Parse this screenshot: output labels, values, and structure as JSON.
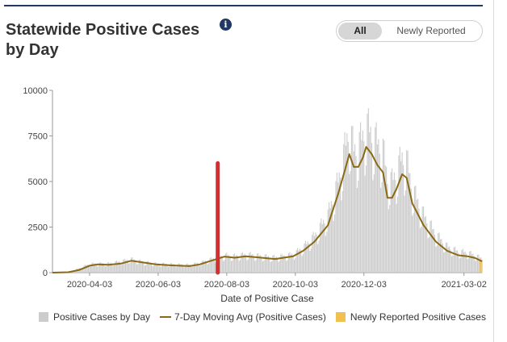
{
  "header": {
    "title": "Statewide Positive Cases by Day",
    "info_icon": "info-icon"
  },
  "toggle": {
    "options": [
      "All",
      "Newly Reported"
    ],
    "selected": "All"
  },
  "colors": {
    "header_rule": "#1f3864",
    "bars": "#cccccc",
    "moving_avg": "#8b6914",
    "newly_reported": "#f0c050",
    "marker": "#d32f2f"
  },
  "chart_data": {
    "type": "bar",
    "xlabel": "Date of Positive Case",
    "ylabel": "",
    "ylim": [
      0,
      10000
    ],
    "x_start": "2020-03-01",
    "x_end": "2021-03-18",
    "y_ticks": [
      0,
      2500,
      5000,
      7500,
      10000
    ],
    "x_ticks": [
      "2020-04-03",
      "2020-06-03",
      "2020-08-03",
      "2020-10-03",
      "2020-12-03",
      "2021-03-02"
    ],
    "marker_date": "2020-07-26",
    "legend": [
      "Positive Cases by Day",
      "7-Day Moving Avg (Positive Cases)",
      "Newly Reported Positive Cases"
    ],
    "moving_avg_points": [
      [
        "2020-03-01",
        0
      ],
      [
        "2020-03-15",
        20
      ],
      [
        "2020-03-25",
        150
      ],
      [
        "2020-04-03",
        380
      ],
      [
        "2020-04-10",
        450
      ],
      [
        "2020-04-20",
        430
      ],
      [
        "2020-05-01",
        500
      ],
      [
        "2020-05-10",
        650
      ],
      [
        "2020-05-20",
        560
      ],
      [
        "2020-06-01",
        450
      ],
      [
        "2020-06-15",
        400
      ],
      [
        "2020-07-01",
        360
      ],
      [
        "2020-07-10",
        450
      ],
      [
        "2020-07-20",
        650
      ],
      [
        "2020-08-01",
        880
      ],
      [
        "2020-08-10",
        820
      ],
      [
        "2020-08-20",
        900
      ],
      [
        "2020-09-01",
        830
      ],
      [
        "2020-09-15",
        750
      ],
      [
        "2020-10-01",
        900
      ],
      [
        "2020-10-10",
        1200
      ],
      [
        "2020-10-20",
        1700
      ],
      [
        "2020-11-01",
        2600
      ],
      [
        "2020-11-10",
        4300
      ],
      [
        "2020-11-16",
        5600
      ],
      [
        "2020-11-20",
        6500
      ],
      [
        "2020-11-24",
        5800
      ],
      [
        "2020-11-28",
        5800
      ],
      [
        "2020-12-02",
        6300
      ],
      [
        "2020-12-05",
        6900
      ],
      [
        "2020-12-10",
        6500
      ],
      [
        "2020-12-15",
        5900
      ],
      [
        "2020-12-20",
        5500
      ],
      [
        "2020-12-24",
        4100
      ],
      [
        "2020-12-28",
        4100
      ],
      [
        "2021-01-01",
        4600
      ],
      [
        "2021-01-06",
        5400
      ],
      [
        "2021-01-10",
        5200
      ],
      [
        "2021-01-15",
        3800
      ],
      [
        "2021-01-25",
        2600
      ],
      [
        "2021-02-05",
        1700
      ],
      [
        "2021-02-15",
        1200
      ],
      [
        "2021-02-25",
        950
      ],
      [
        "2021-03-05",
        900
      ],
      [
        "2021-03-12",
        800
      ],
      [
        "2021-03-18",
        620
      ]
    ],
    "daily_bars": [
      [
        "2020-03-01",
        0
      ],
      [
        "2020-03-15",
        40
      ],
      [
        "2020-03-25",
        250
      ],
      [
        "2020-04-03",
        500
      ],
      [
        "2020-04-10",
        520
      ],
      [
        "2020-04-20",
        520
      ],
      [
        "2020-05-01",
        650
      ],
      [
        "2020-05-10",
        780
      ],
      [
        "2020-05-20",
        620
      ],
      [
        "2020-06-01",
        520
      ],
      [
        "2020-06-15",
        480
      ],
      [
        "2020-07-01",
        450
      ],
      [
        "2020-07-10",
        560
      ],
      [
        "2020-07-20",
        760
      ],
      [
        "2020-08-01",
        1000
      ],
      [
        "2020-08-10",
        950
      ],
      [
        "2020-08-20",
        1050
      ],
      [
        "2020-09-01",
        970
      ],
      [
        "2020-09-15",
        880
      ],
      [
        "2020-10-01",
        1050
      ],
      [
        "2020-10-10",
        1450
      ],
      [
        "2020-10-20",
        2100
      ],
      [
        "2020-11-01",
        3300
      ],
      [
        "2020-11-10",
        5200
      ],
      [
        "2020-11-16",
        7000
      ],
      [
        "2020-11-20",
        8300
      ],
      [
        "2020-11-24",
        7000
      ],
      [
        "2020-11-28",
        7200
      ],
      [
        "2020-12-02",
        7800
      ],
      [
        "2020-12-05",
        8400
      ],
      [
        "2020-12-10",
        7900
      ],
      [
        "2020-12-15",
        7400
      ],
      [
        "2020-12-20",
        7000
      ],
      [
        "2020-12-24",
        5400
      ],
      [
        "2020-12-28",
        5200
      ],
      [
        "2021-01-01",
        5800
      ],
      [
        "2021-01-06",
        6600
      ],
      [
        "2021-01-10",
        6400
      ],
      [
        "2021-01-15",
        4800
      ],
      [
        "2021-01-25",
        3300
      ],
      [
        "2021-02-05",
        2200
      ],
      [
        "2021-02-15",
        1500
      ],
      [
        "2021-02-25",
        1200
      ],
      [
        "2021-03-05",
        1150
      ],
      [
        "2021-03-12",
        1000
      ],
      [
        "2021-03-18",
        800
      ]
    ]
  }
}
